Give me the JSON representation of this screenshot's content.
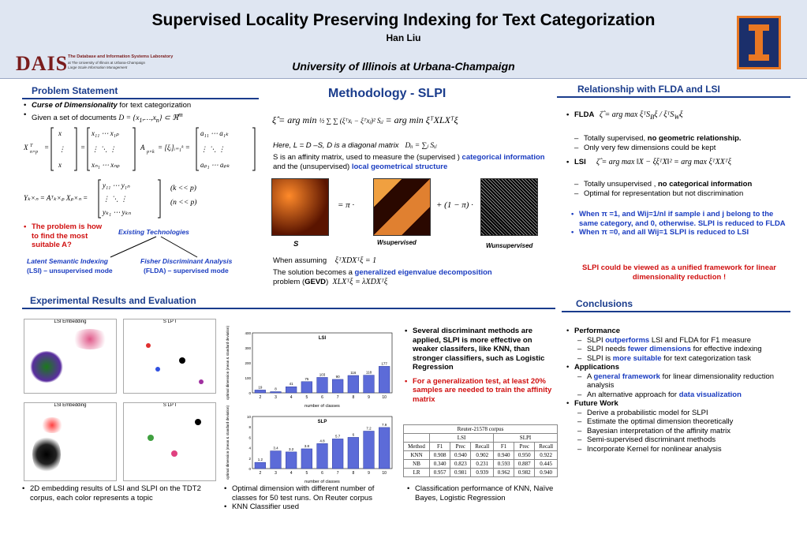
{
  "header": {
    "title": "Supervised Locality Preserving Indexing for Text Categorization",
    "author": "Han Liu",
    "affiliation": "University of Illinois at Urbana-Champaign",
    "logo_text": "DAIS",
    "logo_sub": "The Database and Information Systems Laboratory",
    "logo_sub2": "at The University of Illinois at Urbana-Champaign",
    "logo_sub3": "Large Scale Information Management"
  },
  "problem": {
    "heading": "Problem Statement",
    "bullet1_em": "Curse of Dimensionality",
    "bullet1_rest": " for  text categorization",
    "bullet2": "Given a set of documents",
    "cond1": "(k << p)",
    "cond2": "(n << p)",
    "question": "The problem is how to find the most suitable A?",
    "existing": "Existing Technologies",
    "lsi_line1": "Latent Semantic Indexing",
    "lsi_line2": "(LSI) – unsupervised mode",
    "flda_line1": "Fisher Discriminant Analysis",
    "flda_line2": "(FLDA) – supervised mode"
  },
  "method": {
    "heading": "Methodology - SLPI",
    "here": "Here, L = D –S, D is a diagonal matrix",
    "affinity_pre": "S is an affinity matrix, used to measure the (supervised ) ",
    "affinity_cat": "categorical information",
    "affinity_mid": "  and the (unsupervised) ",
    "affinity_loc": "local geometrical structure",
    "label_s": "S",
    "label_ws": "Wsupervised",
    "label_wu": "Wunsupervised",
    "assuming": "When assuming",
    "solution_pre": "The solution becomes a ",
    "solution_em": "generalized eigenvalue decomposition",
    "problem_pre": "problem (",
    "problem_gevd": "GEVD",
    "problem_post": ")"
  },
  "relationship": {
    "heading": "Relationship with FLDA and LSI",
    "flda": "FLDA",
    "flda_1_pre": "Totally supervised, ",
    "flda_1_em": "no geometric relationship.",
    "flda_2": "Only very few dimensions could be kept",
    "lsi": "LSI",
    "lsi_1_pre": "Totally unsupervised , ",
    "lsi_1_em": "no categorical information",
    "lsi_2": "Optimal for representation but not discrimination",
    "when1": "When π =1, and Wij=1/nl if sample i and j belong to the same category, and  0, otherwise. SLPI is reduced to FLDA",
    "when2": "When π =0, and all Wij=1 SLPI is reduced to LSI",
    "unified": "SLPI could be viewed as a unified framework for linear dimensionality reduction !"
  },
  "experiments": {
    "heading": "Experimental Results and Evaluation",
    "scatter_tl": "LSI Embedding",
    "scatter_tr": "S  LP  I",
    "scatter_bl": "LSI Embedding",
    "scatter_br": "S  LP  I",
    "cap_embedding": "2D embedding results of LSI and SLPI on the TDT2 corpus, each color represents a topic",
    "cap_dim1": "Optimal dimension with different number of classes for 50 test runs. On Reuter corpus",
    "cap_dim2": "KNN Classifier used",
    "finding1": "Several discriminant methods are applied, SLPI is more effective on weaker classifers, like KNN, than stronger classifiers, such as Logistic Regression",
    "finding2": "For a generalization test, at least 20% samples are needed to train the affinity matrix",
    "cap_table": "Classification performance of KNN, Naïve Bayes, Logistic Regression",
    "table": {
      "corpus": "Reuter-21578 corpus",
      "groups": [
        "LSI",
        "SLPI"
      ],
      "cols": [
        "Method",
        "F1",
        "Prec",
        "Recall",
        "F1",
        "Prec",
        "Recall"
      ],
      "rows": [
        [
          "KNN",
          "0.908",
          "0.940",
          "0.902",
          "0.940",
          "0.950",
          "0.922"
        ],
        [
          "NB",
          "0.340",
          "0.823",
          "0.231",
          "0.593",
          "0.887",
          "0.445"
        ],
        [
          "LR",
          "0.957",
          "0.981",
          "0.939",
          "0.962",
          "0.982",
          "0.940"
        ]
      ]
    }
  },
  "conclusions": {
    "heading": "Conclusions",
    "performance": "Performance",
    "p1_pre": "SLPI ",
    "p1_em": "outperforms",
    "p1_post": " LSI and FLDA for F1 measure",
    "p2_pre": "SLPI needs ",
    "p2_em": "fewer dimensions",
    "p2_post": " for effective indexing",
    "p3_pre": "SLPI is ",
    "p3_em": "more suitable",
    "p3_post": " for text categorization task",
    "applications": "Applications",
    "a1_pre": "A ",
    "a1_em": "general framework",
    "a1_post": " for linear dimensionality reduction analysis",
    "a2_pre": "An alternative approach for ",
    "a2_em": "data visualization",
    "future": "Future Work",
    "f1": "Derive a probabilistic model for SLPI",
    "f2": "Estimate the optimal dimension theoretically",
    "f3": "Bayesian interpretation of the affinity matrix",
    "f4": "Semi-supervised discriminant methods",
    "f5": "Incorporate Kernel for nonlinear analysis"
  },
  "chart_data": [
    {
      "type": "bar",
      "title": "LSI",
      "xlabel": "number of classes",
      "ylabel": "optimal dimension (mean & standard deviation)",
      "categories": [
        "2",
        "3",
        "4",
        "5",
        "6",
        "7",
        "8",
        "9",
        "10"
      ],
      "values": [
        19,
        8,
        41,
        75,
        103,
        90,
        116,
        118,
        177
      ],
      "ylim": [
        0,
        400
      ],
      "yticks": [
        "0",
        "100",
        "200",
        "300",
        "400"
      ]
    },
    {
      "type": "bar",
      "title": "SLP",
      "xlabel": "number of classes",
      "ylabel": "optimal dimension (mean & standard deviation)",
      "categories": [
        "2",
        "3",
        "4",
        "5",
        "6",
        "7",
        "8",
        "9",
        "10"
      ],
      "values": [
        1.2,
        3.4,
        3.2,
        3.8,
        4.8,
        5.7,
        6.0,
        7.2,
        7.9
      ],
      "ylim": [
        0,
        10
      ],
      "yticks": [
        "0",
        "2",
        "4",
        "6",
        "8",
        "10"
      ]
    }
  ]
}
